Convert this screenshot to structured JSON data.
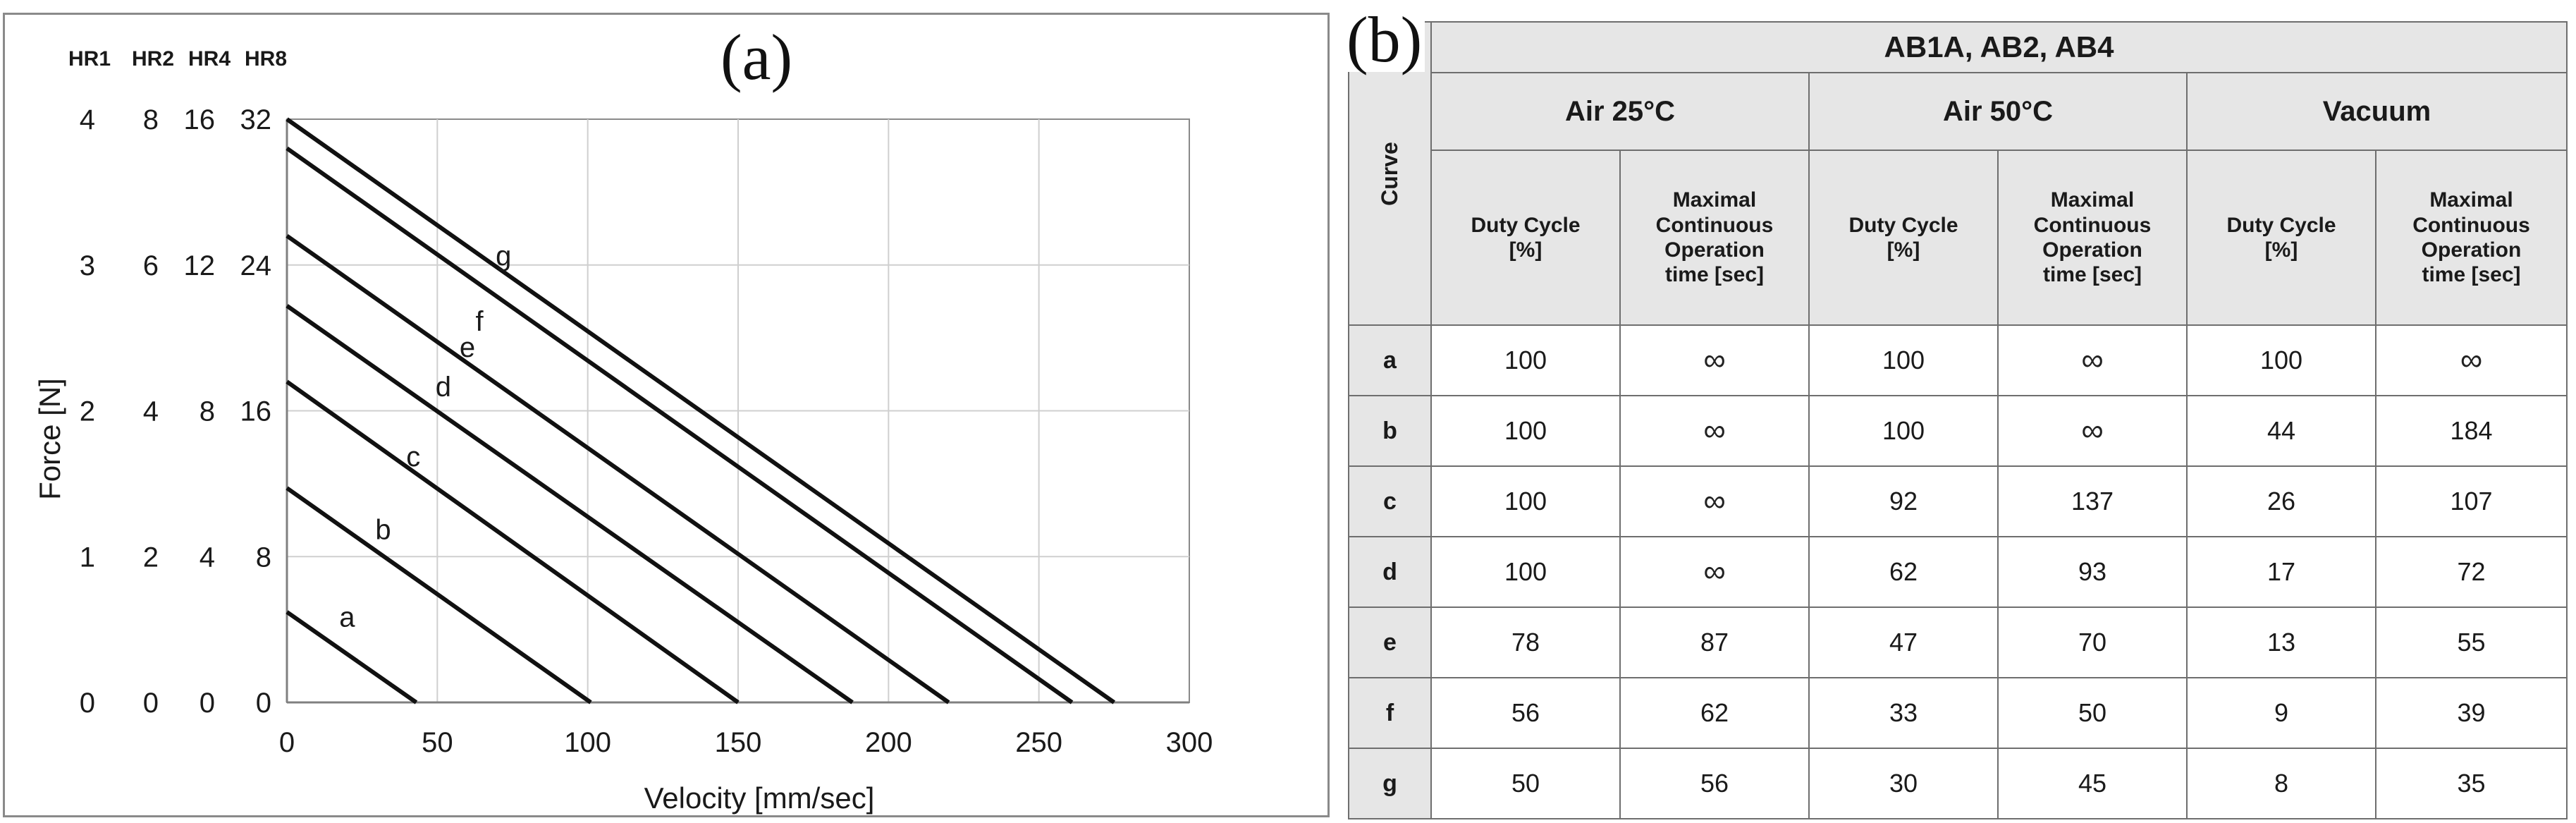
{
  "panel_a": {
    "label": "(a)",
    "chart_data": {
      "type": "line",
      "title": "",
      "xlabel": "Velocity [mm/sec]",
      "ylabel": "Force [N]",
      "xlim": [
        0,
        300
      ],
      "ylim": [
        0,
        4
      ],
      "x_ticks": [
        "0",
        "50",
        "100",
        "150",
        "200",
        "250",
        "300"
      ],
      "grid": true,
      "y_axes": [
        {
          "header": "HR1",
          "ticks": [
            "0",
            "1",
            "2",
            "3",
            "4"
          ]
        },
        {
          "header": "HR2",
          "ticks": [
            "0",
            "2",
            "4",
            "6",
            "8"
          ]
        },
        {
          "header": "HR4",
          "ticks": [
            "0",
            "4",
            "8",
            "12",
            "16"
          ]
        },
        {
          "header": "HR8",
          "ticks": [
            "0",
            "8",
            "16",
            "24",
            "32"
          ]
        }
      ],
      "series": [
        {
          "name": "a",
          "x": [
            0,
            43
          ],
          "y": [
            0.62,
            0
          ]
        },
        {
          "name": "b",
          "x": [
            0,
            101
          ],
          "y": [
            1.47,
            0
          ]
        },
        {
          "name": "c",
          "x": [
            0,
            150
          ],
          "y": [
            2.2,
            0
          ]
        },
        {
          "name": "d",
          "x": [
            0,
            188
          ],
          "y": [
            2.72,
            0
          ]
        },
        {
          "name": "e",
          "x": [
            0,
            220
          ],
          "y": [
            3.2,
            0
          ]
        },
        {
          "name": "f",
          "x": [
            0,
            261
          ],
          "y": [
            3.8,
            0
          ]
        },
        {
          "name": "g",
          "x": [
            0,
            275
          ],
          "y": [
            4.0,
            0
          ]
        }
      ],
      "annotations": [
        {
          "text": "a",
          "x": 20,
          "y": 0.52
        },
        {
          "text": "b",
          "x": 32,
          "y": 1.12
        },
        {
          "text": "c",
          "x": 42,
          "y": 1.62
        },
        {
          "text": "d",
          "x": 52,
          "y": 2.1
        },
        {
          "text": "e",
          "x": 60,
          "y": 2.37
        },
        {
          "text": "f",
          "x": 64,
          "y": 2.55
        },
        {
          "text": "g",
          "x": 72,
          "y": 3.0
        }
      ]
    }
  },
  "panel_b": {
    "label": "(b)",
    "title": "AB1A, AB2, AB4",
    "curve_header": "Curve",
    "groups": [
      "Air 25°C",
      "Air 50°C",
      "Vacuum"
    ],
    "subheaders": {
      "duty": [
        "Duty Cycle",
        "[%]"
      ],
      "maxop": [
        "Maximal",
        "Continuous",
        "Operation",
        "time [sec]"
      ]
    },
    "rows": [
      {
        "curve": "a",
        "values": [
          "100",
          "∞",
          "100",
          "∞",
          "100",
          "∞"
        ]
      },
      {
        "curve": "b",
        "values": [
          "100",
          "∞",
          "100",
          "∞",
          "44",
          "184"
        ]
      },
      {
        "curve": "c",
        "values": [
          "100",
          "∞",
          "92",
          "137",
          "26",
          "107"
        ]
      },
      {
        "curve": "d",
        "values": [
          "100",
          "∞",
          "62",
          "93",
          "17",
          "72"
        ]
      },
      {
        "curve": "e",
        "values": [
          "78",
          "87",
          "47",
          "70",
          "13",
          "55"
        ]
      },
      {
        "curve": "f",
        "values": [
          "56",
          "62",
          "33",
          "50",
          "9",
          "39"
        ]
      },
      {
        "curve": "g",
        "values": [
          "50",
          "56",
          "30",
          "45",
          "8",
          "35"
        ]
      }
    ]
  }
}
